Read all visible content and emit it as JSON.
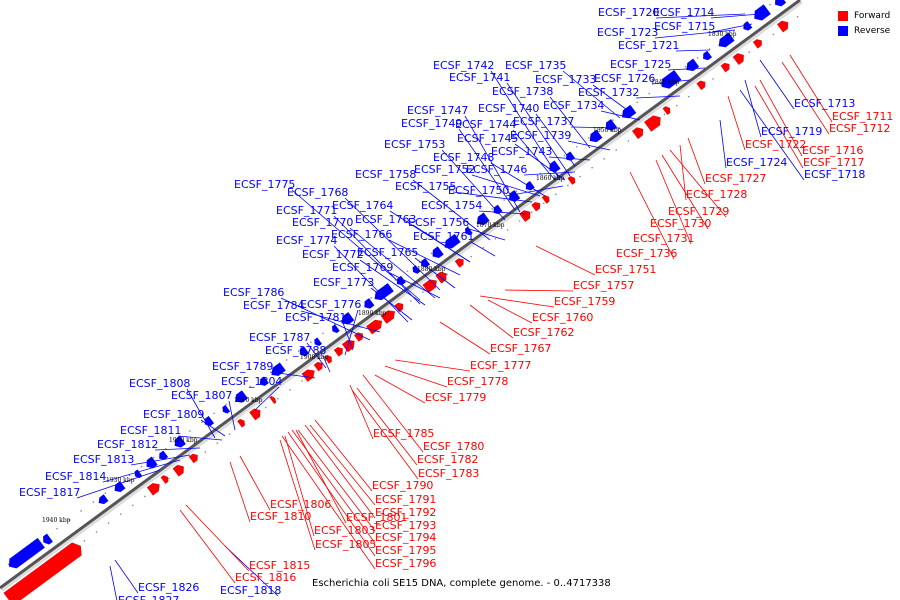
{
  "caption": "Escherichia coli SE15 DNA, complete genome. - 0..4717338",
  "legend": [
    {
      "label": "Forward",
      "color": "#ff0000"
    },
    {
      "label": "Reverse",
      "color": "#0000ff"
    }
  ],
  "colors": {
    "forward": "#ff0000",
    "reverse": "#0000ff",
    "backbone_dark": "#555555",
    "backbone_light": "#dddddd"
  },
  "ticks": [
    "1830 kbp",
    "1840 kbp",
    "1850 kbp",
    "1860 kbp",
    "1870 kbp",
    "1880 kbp",
    "1890 kbp",
    "1900 kbp",
    "1910 kbp",
    "1920 kbp",
    "1930 kbp",
    "1940 kbp"
  ],
  "reverse_labels": [
    "ECSF_1720",
    "ECSF_1714",
    "ECSF_1723",
    "ECSF_1715",
    "ECSF_1721",
    "ECSF_1725",
    "ECSF_1726",
    "ECSF_1732",
    "ECSF_1735",
    "ECSF_1742",
    "ECSF_1741",
    "ECSF_1733",
    "ECSF_1738",
    "ECSF_1734",
    "ECSF_1740",
    "ECSF_1747",
    "ECSF_1737",
    "ECSF_1749",
    "ECSF_1744",
    "ECSF_1739",
    "ECSF_1745",
    "ECSF_1753",
    "ECSF_1743",
    "ECSF_1748",
    "ECSF_1752",
    "ECSF_1746",
    "ECSF_1758",
    "ECSF_1775",
    "ECSF_1755",
    "ECSF_1768",
    "ECSF_1750",
    "ECSF_1764",
    "ECSF_1754",
    "ECSF_1771",
    "ECSF_1763",
    "ECSF_1770",
    "ECSF_1756",
    "ECSF_1766",
    "ECSF_1774",
    "ECSF_1761",
    "ECSF_1772",
    "ECSF_1765",
    "ECSF_1769",
    "ECSF_1773",
    "ECSF_1786",
    "ECSF_1784",
    "ECSF_1776",
    "ECSF_1781",
    "ECSF_1787",
    "ECSF_1788",
    "ECSF_1789",
    "ECSF_1804",
    "ECSF_1808",
    "ECSF_1807",
    "ECSF_1809",
    "ECSF_1811",
    "ECSF_1812",
    "ECSF_1813",
    "ECSF_1814",
    "ECSF_1817",
    "ECSF_1713",
    "ECSF_1719",
    "ECSF_1724",
    "ECSF_1718",
    "ECSF_1826",
    "ECSF_1827",
    "ECSF_1818"
  ],
  "forward_labels": [
    "ECSF_1711",
    "ECSF_1712",
    "ECSF_1716",
    "ECSF_1717",
    "ECSF_1722",
    "ECSF_1727",
    "ECSF_1728",
    "ECSF_1729",
    "ECSF_1730",
    "ECSF_1731",
    "ECSF_1736",
    "ECSF_1751",
    "ECSF_1757",
    "ECSF_1759",
    "ECSF_1760",
    "ECSF_1762",
    "ECSF_1767",
    "ECSF_1777",
    "ECSF_1778",
    "ECSF_1779",
    "ECSF_1785",
    "ECSF_1780",
    "ECSF_1782",
    "ECSF_1783",
    "ECSF_1790",
    "ECSF_1791",
    "ECSF_1806",
    "ECSF_1792",
    "ECSF_1810",
    "ECSF_1801",
    "ECSF_1793",
    "ECSF_1803",
    "ECSF_1794",
    "ECSF_1805",
    "ECSF_1795",
    "ECSF_1796",
    "ECSF_1815",
    "ECSF_1816"
  ]
}
